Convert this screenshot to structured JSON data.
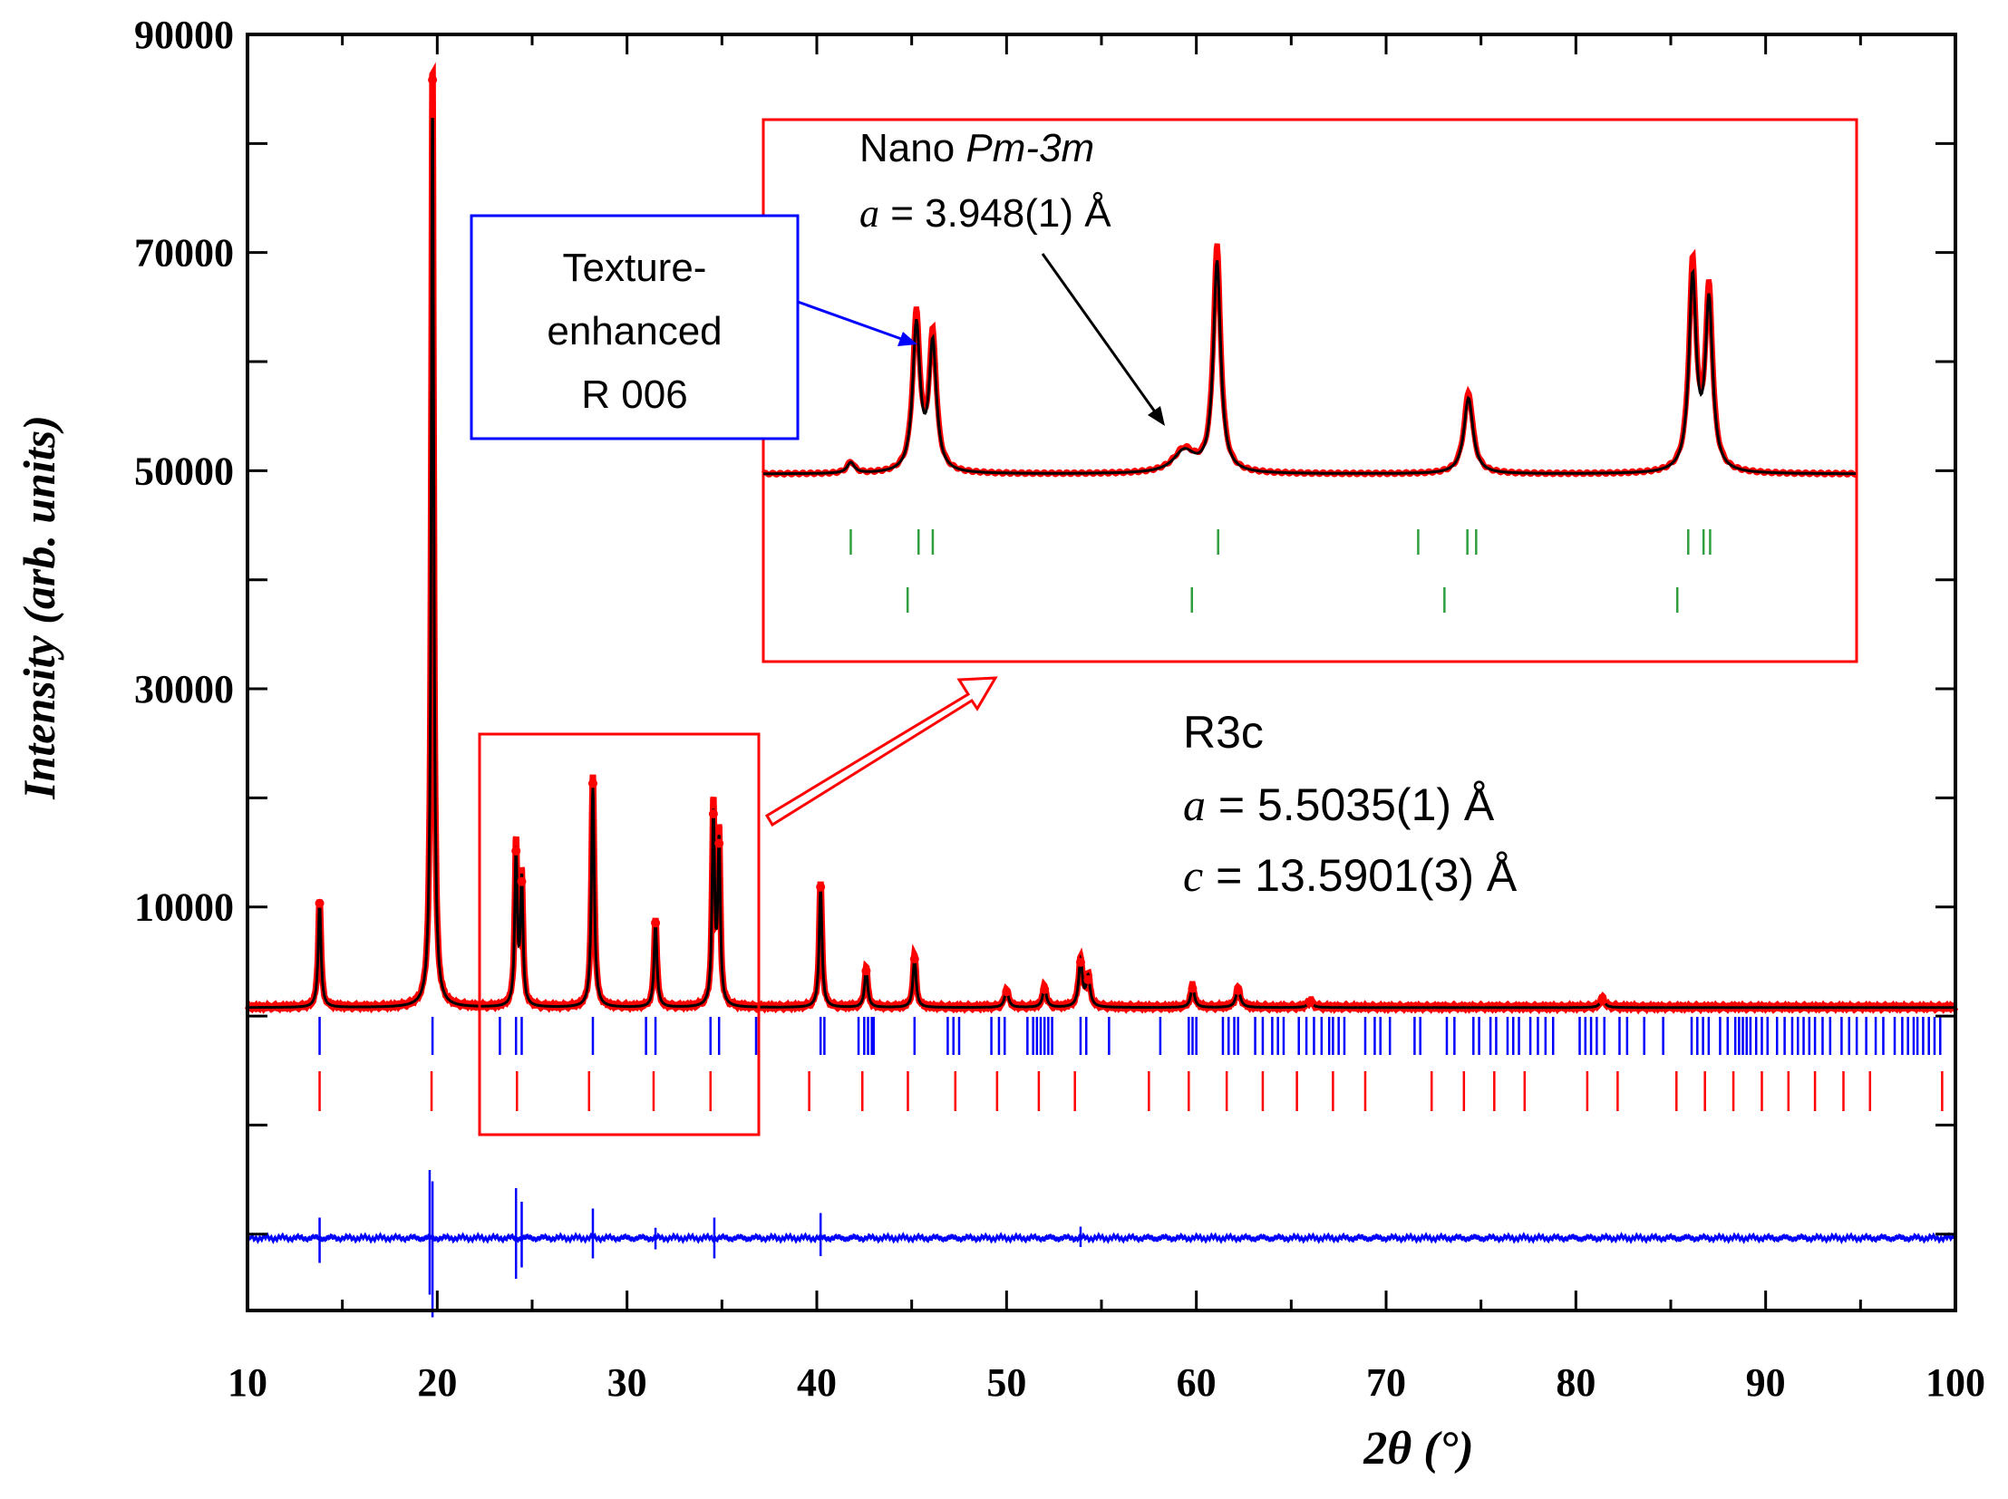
{
  "chart_data": {
    "type": "line",
    "xlabel": "2θ (°)",
    "ylabel": "Intensity (arb. units)",
    "xlim": [
      10,
      100
    ],
    "ylim": [
      -27000,
      90000
    ],
    "x_ticks": [
      "10",
      "20",
      "30",
      "40",
      "50",
      "60",
      "70",
      "80",
      "90",
      "100"
    ],
    "y_ticks": [
      "90000",
      "70000",
      "50000",
      "30000",
      "10000"
    ],
    "y_tick_values": [
      90000,
      70000,
      50000,
      30000,
      10000
    ],
    "colors": {
      "observed": "#ff0000",
      "calculated": "#000000",
      "difference": "#0000ff",
      "r3c_reflections": "#0000ff",
      "second_phase_reflections": "#ff0000",
      "inset_reflections": "#2e9e3e",
      "inset_box": "#ff0000",
      "label_box": "#0000ff"
    },
    "background_level": 800,
    "peaks": [
      {
        "x": 13.8,
        "y": 10000,
        "w": 0.09
      },
      {
        "x": 19.75,
        "y": 85500,
        "w": 0.08
      },
      {
        "x": 24.15,
        "y": 14800,
        "w": 0.08
      },
      {
        "x": 24.45,
        "y": 12000,
        "w": 0.08
      },
      {
        "x": 28.2,
        "y": 21000,
        "w": 0.09
      },
      {
        "x": 31.5,
        "y": 8200,
        "w": 0.09
      },
      {
        "x": 34.55,
        "y": 18200,
        "w": 0.08
      },
      {
        "x": 34.85,
        "y": 15500,
        "w": 0.08
      },
      {
        "x": 40.2,
        "y": 11500,
        "w": 0.09
      },
      {
        "x": 42.6,
        "y": 3800,
        "w": 0.1
      },
      {
        "x": 45.15,
        "y": 4900,
        "w": 0.1
      },
      {
        "x": 50.0,
        "y": 1900,
        "w": 0.12
      },
      {
        "x": 52.0,
        "y": 2100,
        "w": 0.12
      },
      {
        "x": 53.9,
        "y": 4600,
        "w": 0.12
      },
      {
        "x": 54.3,
        "y": 3000,
        "w": 0.12
      },
      {
        "x": 59.8,
        "y": 2200,
        "w": 0.12
      },
      {
        "x": 62.2,
        "y": 2000,
        "w": 0.14
      },
      {
        "x": 66.0,
        "y": 900,
        "w": 0.14
      },
      {
        "x": 81.4,
        "y": 1100,
        "w": 0.14
      }
    ],
    "r3c_reflection_ticks": [
      13.8,
      19.75,
      23.3,
      24.15,
      24.45,
      28.2,
      31.0,
      31.5,
      34.4,
      34.85,
      36.8,
      40.2,
      40.4,
      42.2,
      42.5,
      42.7,
      42.9,
      43.0,
      45.15,
      46.9,
      47.2,
      47.5,
      49.2,
      49.6,
      49.9,
      51.1,
      51.4,
      51.6,
      51.8,
      52.0,
      52.2,
      52.4,
      53.9,
      54.2,
      55.4,
      58.1,
      59.6,
      59.8,
      60.0,
      61.4,
      61.7,
      62.0,
      62.2,
      63.1,
      63.5,
      64.0,
      64.3,
      64.6,
      65.4,
      65.8,
      66.2,
      66.6,
      67.0,
      67.2,
      67.5,
      67.8,
      68.9,
      69.4,
      69.7,
      70.2,
      71.5,
      71.8,
      73.2,
      73.6,
      74.6,
      74.9,
      75.5,
      75.8,
      76.4,
      76.7,
      77.0,
      77.6,
      78.0,
      78.4,
      78.8,
      80.2,
      80.5,
      80.8,
      81.1,
      81.5,
      82.3,
      82.7,
      83.6,
      84.6,
      86.1,
      86.4,
      86.7,
      87.0,
      87.6,
      88.0,
      88.4,
      88.6,
      88.8,
      89.0,
      89.2,
      89.5,
      89.8,
      90.1,
      90.6,
      91.0,
      91.4,
      91.7,
      92.0,
      92.3,
      92.6,
      93.0,
      93.4,
      94.0,
      94.4,
      94.8,
      95.3,
      95.8,
      96.2,
      96.8,
      97.2,
      97.5,
      97.8,
      98.0,
      98.3,
      98.6,
      98.9,
      99.2
    ],
    "second_phase_reflection_ticks": [
      13.8,
      19.7,
      24.2,
      28.0,
      31.4,
      34.4,
      39.6,
      42.4,
      44.8,
      47.3,
      49.5,
      51.7,
      53.6,
      57.5,
      59.6,
      61.6,
      63.5,
      65.3,
      67.2,
      68.9,
      72.4,
      74.1,
      75.7,
      77.3,
      80.6,
      82.2,
      85.3,
      86.8,
      88.3,
      89.8,
      91.2,
      92.6,
      94.1,
      95.5,
      99.3
    ],
    "difference_spikes": [
      {
        "x": 13.8,
        "up": 900,
        "down": 1100
      },
      {
        "x": 19.6,
        "up": 3000,
        "down": 2500
      },
      {
        "x": 19.75,
        "up": 2500,
        "down": 3500
      },
      {
        "x": 24.15,
        "up": 2200,
        "down": 1800
      },
      {
        "x": 24.45,
        "up": 1600,
        "down": 1300
      },
      {
        "x": 28.2,
        "up": 1300,
        "down": 900
      },
      {
        "x": 31.5,
        "up": 450,
        "down": 500
      },
      {
        "x": 34.6,
        "up": 900,
        "down": 900
      },
      {
        "x": 40.2,
        "up": 1100,
        "down": 800
      },
      {
        "x": 53.9,
        "up": 500,
        "down": 400
      }
    ],
    "inset": {
      "peaks": [
        {
          "u": 0.08,
          "h": 0.04,
          "w": 0.004
        },
        {
          "u": 0.14,
          "h": 0.54,
          "w": 0.004
        },
        {
          "u": 0.155,
          "h": 0.47,
          "w": 0.004
        },
        {
          "u": 0.385,
          "h": 0.08,
          "w": 0.012
        },
        {
          "u": 0.415,
          "h": 0.78,
          "w": 0.004
        },
        {
          "u": 0.645,
          "h": 0.28,
          "w": 0.005
        },
        {
          "u": 0.85,
          "h": 0.71,
          "w": 0.004
        },
        {
          "u": 0.865,
          "h": 0.62,
          "w": 0.004
        }
      ],
      "ticks_row1": [
        0.08,
        0.142,
        0.155,
        0.416,
        0.599,
        0.644,
        0.652,
        0.846,
        0.86,
        0.866
      ],
      "ticks_row2": [
        0.132,
        0.392,
        0.623,
        0.836
      ]
    },
    "annotations": {
      "texture_box": {
        "lines": [
          "Texture-",
          "enhanced",
          "R 006"
        ]
      },
      "inset_phase": {
        "line1": "Nano ",
        "line1_italic": "Pm-3m",
        "line2_italic": "a",
        "line2": " = 3.948(1) Å"
      },
      "main_phase": {
        "name": "R3c",
        "a_italic": "a",
        "a_value": " = 5.5035(1) Å",
        "c_italic": "c",
        "c_value": " = 13.5901(3) Å"
      }
    }
  }
}
